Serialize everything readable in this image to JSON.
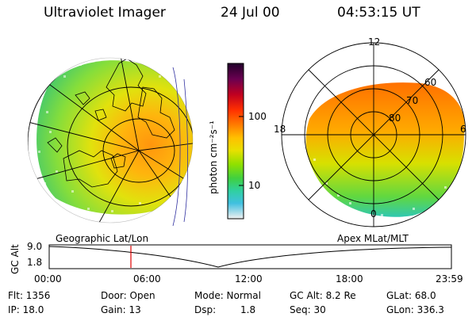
{
  "header": {
    "title": "Ultraviolet Imager",
    "date": "24 Jul 00",
    "time": "04:53:15 UT"
  },
  "colorbar": {
    "unit_label": "photon cm⁻²s⁻¹",
    "ticks": [
      "100",
      "10"
    ],
    "colors": [
      "#2a0030",
      "#6a0050",
      "#c00020",
      "#ff3000",
      "#ff8000",
      "#ffc000",
      "#e8e000",
      "#90e000",
      "#40d040",
      "#30d0a0",
      "#40c0e0",
      "#b0e8f0",
      "#f0f0f0"
    ]
  },
  "left_panel": {
    "caption": "Geographic Lat/Lon"
  },
  "right_panel": {
    "caption": "Apex MLat/MLT",
    "mlt_labels": {
      "top": "12",
      "left": "18",
      "right": "6",
      "bottom": "0"
    },
    "lat_labels": [
      "60",
      "70",
      "80"
    ]
  },
  "altitude_plot": {
    "ylabel": "GC Alt",
    "ytick_top": "9.0",
    "ytick_bottom": "1.8",
    "xticks": [
      "00:00",
      "06:00",
      "12:00",
      "18:00",
      "23:59"
    ],
    "marker_time": "04:53"
  },
  "info": {
    "flt": "Flt: 1356",
    "ip": "IP: 18.0",
    "door": "Door: Open",
    "gain": "Gain: 13",
    "mode": "Mode: Normal",
    "dsp_label": "Dsp:",
    "dsp_value": "1.8",
    "gc_alt": "GC Alt: 8.2 Re",
    "seq": "Seq: 30",
    "glat": "GLat:  68.0",
    "glon": "GLon: 336.3"
  }
}
